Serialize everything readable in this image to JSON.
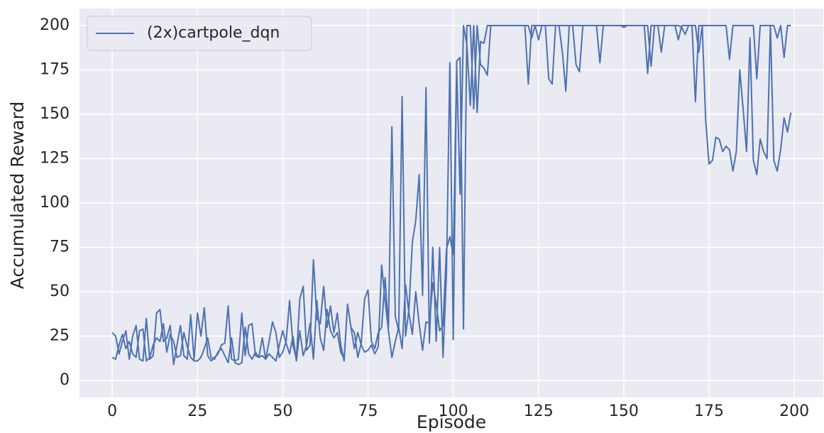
{
  "chart_data": {
    "type": "line",
    "xlabel": "Episode",
    "ylabel": "Accumulated Reward",
    "xlim": [
      -9.6,
      208.5
    ],
    "ylim": [
      -9.6,
      209.6
    ],
    "xticks": [
      0,
      25,
      50,
      75,
      100,
      125,
      150,
      175,
      200
    ],
    "yticks": [
      0,
      25,
      50,
      75,
      100,
      125,
      150,
      175,
      200
    ],
    "grid": true,
    "legend": "upper left",
    "x": [
      0,
      1,
      2,
      3,
      4,
      5,
      6,
      7,
      8,
      9,
      10,
      11,
      12,
      13,
      14,
      15,
      16,
      17,
      18,
      19,
      20,
      21,
      22,
      23,
      24,
      25,
      26,
      27,
      28,
      29,
      30,
      31,
      32,
      33,
      34,
      35,
      36,
      37,
      38,
      39,
      40,
      41,
      42,
      43,
      44,
      45,
      46,
      47,
      48,
      49,
      50,
      51,
      52,
      53,
      54,
      55,
      56,
      57,
      58,
      59,
      60,
      61,
      62,
      63,
      64,
      65,
      66,
      67,
      68,
      69,
      70,
      71,
      72,
      73,
      74,
      75,
      76,
      77,
      78,
      79,
      80,
      81,
      82,
      83,
      84,
      85,
      86,
      87,
      88,
      89,
      90,
      91,
      92,
      93,
      94,
      95,
      96,
      97,
      98,
      99,
      100,
      101,
      102,
      103,
      104,
      105,
      106,
      107,
      108,
      109,
      110,
      111,
      112,
      113,
      114,
      115,
      116,
      117,
      118,
      119,
      120,
      121,
      122,
      123,
      124,
      125,
      126,
      127,
      128,
      129,
      130,
      131,
      132,
      133,
      134,
      135,
      136,
      137,
      138,
      139,
      140,
      141,
      142,
      143,
      144,
      145,
      146,
      147,
      148,
      149,
      150,
      151,
      152,
      153,
      154,
      155,
      156,
      157,
      158,
      159,
      160,
      161,
      162,
      163,
      164,
      165,
      166,
      167,
      168,
      169,
      170,
      171,
      172,
      173,
      174,
      175,
      176,
      177,
      178,
      179,
      180,
      181,
      182,
      183,
      184,
      185,
      186,
      187,
      188,
      189,
      190,
      191,
      192,
      193,
      194,
      195,
      196,
      197,
      198,
      199,
      null,
      0,
      1,
      2,
      3,
      4,
      5,
      6,
      7,
      8,
      9,
      10,
      11,
      12,
      13,
      14,
      15,
      16,
      17,
      18,
      19,
      20,
      21,
      22,
      23,
      24,
      25,
      26,
      27,
      28,
      29,
      30,
      31,
      32,
      33,
      34,
      35,
      36,
      37,
      38,
      39,
      40,
      41,
      42,
      43,
      44,
      45,
      46,
      47,
      48,
      49,
      50,
      51,
      52,
      53,
      54,
      55,
      56,
      57,
      58,
      59,
      60,
      61,
      62,
      63,
      64,
      65,
      66,
      67,
      68,
      69,
      70,
      71,
      72,
      73,
      74,
      75,
      76,
      77,
      78,
      79,
      80,
      81,
      82,
      83,
      84,
      85,
      86,
      87,
      88,
      89,
      90,
      91,
      92,
      93,
      94,
      95,
      96,
      97,
      98,
      99,
      100,
      101,
      102,
      103,
      104,
      105,
      106,
      107,
      108,
      109,
      110,
      111,
      112,
      113,
      114,
      115,
      116,
      117,
      118,
      119,
      120,
      121,
      122,
      123,
      124,
      125,
      126,
      127,
      128,
      129,
      130,
      131,
      132,
      133,
      134,
      135,
      136,
      137,
      138,
      139,
      140,
      141,
      142,
      143,
      144,
      145,
      146,
      147,
      148,
      149,
      150,
      151,
      152,
      153,
      154,
      155,
      156,
      157,
      158,
      159,
      160,
      161,
      162,
      163,
      164,
      165,
      166,
      167,
      168,
      169,
      170,
      171,
      172,
      173,
      174,
      175,
      176,
      177,
      178,
      179,
      180,
      181,
      182,
      183,
      184,
      185,
      186,
      187,
      188,
      189,
      190,
      191,
      192,
      193,
      194,
      195,
      196,
      197,
      198,
      199
    ],
    "series": [
      {
        "name": "(2x)cartpole_dqn",
        "color": "#4c72b0",
        "values": [
          27,
          25,
          15,
          22,
          28,
          12,
          25,
          31,
          12,
          11,
          35,
          12,
          14,
          38,
          40,
          22,
          24,
          31,
          9,
          20,
          31,
          14,
          12,
          37,
          12,
          38,
          25,
          41,
          14,
          11,
          13,
          15,
          20,
          21,
          42,
          12,
          11,
          12,
          38,
          14,
          31,
          32,
          14,
          13,
          24,
          12,
          22,
          33,
          27,
          13,
          16,
          22,
          45,
          20,
          12,
          46,
          53,
          17,
          20,
          68,
          35,
          32,
          53,
          30,
          42,
          27,
          38,
          20,
          11,
          43,
          30,
          27,
          13,
          21,
          46,
          51,
          22,
          18,
          27,
          30,
          58,
          30,
          143,
          36,
          28,
          160,
          25,
          40,
          78,
          90,
          116,
          48,
          165,
          21,
          75,
          22,
          75,
          13,
          60,
          179,
          23,
          180,
          182,
          29,
          200,
          200,
          153,
          200,
          178,
          176,
          172,
          200,
          200,
          200,
          200,
          200,
          200,
          200,
          200,
          200,
          200,
          200,
          167,
          200,
          200,
          192,
          200,
          200,
          170,
          167,
          200,
          200,
          185,
          163,
          200,
          200,
          178,
          174,
          200,
          200,
          200,
          200,
          200,
          179,
          200,
          200,
          200,
          200,
          200,
          200,
          199,
          200,
          200,
          200,
          200,
          200,
          200,
          173,
          200,
          200,
          200,
          185,
          200,
          200,
          200,
          200,
          192,
          200,
          200,
          200,
          200,
          157,
          200,
          200,
          147,
          122,
          124,
          137,
          136,
          129,
          132,
          130,
          118,
          129,
          175,
          153,
          129,
          193,
          124,
          116,
          136,
          129,
          125,
          200,
          124,
          118,
          130,
          148,
          140,
          151,
          null,
          13,
          12,
          20,
          26,
          18,
          22,
          15,
          13,
          28,
          29,
          11,
          13,
          20,
          24,
          22,
          32,
          16,
          26,
          22,
          13,
          14,
          27,
          19,
          13,
          11,
          11,
          13,
          18,
          24,
          13,
          12,
          16,
          18,
          14,
          10,
          24,
          10,
          9,
          10,
          30,
          15,
          12,
          16,
          13,
          14,
          12,
          15,
          13,
          11,
          20,
          28,
          21,
          15,
          25,
          11,
          28,
          14,
          20,
          32,
          12,
          45,
          24,
          17,
          40,
          28,
          24,
          27,
          16,
          12,
          43,
          30,
          18,
          27,
          20,
          16,
          17,
          20,
          15,
          19,
          65,
          45,
          28,
          13,
          22,
          30,
          18,
          54,
          38,
          26,
          50,
          32,
          17,
          33,
          32,
          55,
          43,
          28,
          31,
          74,
          81,
          71,
          177,
          105,
          200,
          189,
          155,
          200,
          151,
          191,
          190,
          200,
          200,
          200,
          200,
          200,
          200,
          200,
          200,
          200,
          200,
          200,
          200,
          200,
          193,
          200,
          200,
          200,
          200,
          200,
          200,
          200,
          200,
          200,
          200,
          200,
          200,
          200,
          200,
          200,
          200,
          200,
          200,
          200,
          200,
          200,
          200,
          200,
          200,
          200,
          200,
          200,
          200,
          200,
          200,
          200,
          200,
          200,
          200,
          177,
          200,
          200,
          200,
          200,
          200,
          200,
          200,
          200,
          199,
          195,
          200,
          200,
          200,
          185,
          200,
          200,
          200,
          200,
          200,
          200,
          200,
          200,
          181,
          200,
          200,
          200,
          200,
          200,
          200,
          200,
          170,
          200,
          200,
          200,
          200,
          200,
          193,
          200,
          182,
          200,
          200
        ]
      }
    ]
  }
}
